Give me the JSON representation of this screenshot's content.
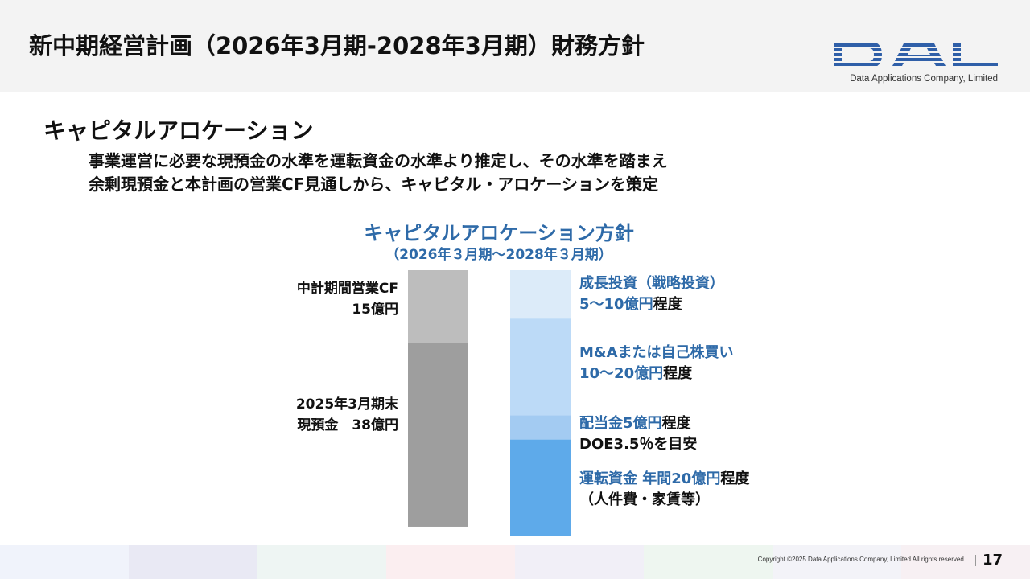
{
  "header": {
    "title": "新中期経営計画（2026年3月期-2028年3月期）財務方針"
  },
  "logo": {
    "mark": "DAL",
    "company": "Data Applications Company, Limited",
    "color": "#2f5fa8"
  },
  "section": {
    "title": "キャピタルアロケーション",
    "desc_line1": "事業運営に必要な現預金の水準を運転資金の水準より推定し、その水準を踏まえ",
    "desc_line2": "余剰現預金と本計画の営業CF見通しから、キャピタル・アロケーションを策定"
  },
  "chart_data": {
    "type": "bar",
    "title": "キャピタルアロケーション方針",
    "subtitle": "（2026年３月期～2028年３月期）",
    "sources": {
      "segments": [
        {
          "label_line1": "中計期間営業CF",
          "label_line2": "15億円",
          "value": 15,
          "color": "#bdbdbd"
        },
        {
          "label_line1": "2025年3月期末",
          "label_line2": "現預金　38億円",
          "value": 38,
          "color": "#9e9e9e"
        }
      ]
    },
    "uses": {
      "segments": [
        {
          "label_blue": "成長投資（戦略投資）",
          "label2_blue": "5～10億円",
          "label2_black": "程度",
          "value": 10,
          "color": "#dcebf9"
        },
        {
          "label_blue": "M&Aまたは自己株買い",
          "label2_blue": "10～20億円",
          "label2_black": "程度",
          "value": 20,
          "color": "#bcdaf7"
        },
        {
          "label_blue": "配当金5億円",
          "label_black": "程度",
          "label2_black": "DOE3.5％を目安",
          "value": 5,
          "color": "#a3cbf2"
        },
        {
          "label_blue": "運転資金 年間20億円",
          "label_black": "程度",
          "label2_black": "（人件費・家賃等）",
          "value": 20,
          "color": "#5eaaea"
        }
      ]
    },
    "total": 55
  },
  "footer": {
    "colors": [
      "#f0f3fb",
      "#e9e9f4",
      "#eef5f3",
      "#fbeef0",
      "#f1eff7",
      "#eef6f0",
      "#f3f3f8",
      "#f7f0f3"
    ],
    "copyright": "Copyright ©2025 Data Applications Company, Limited All rights reserved.",
    "page": "17"
  }
}
